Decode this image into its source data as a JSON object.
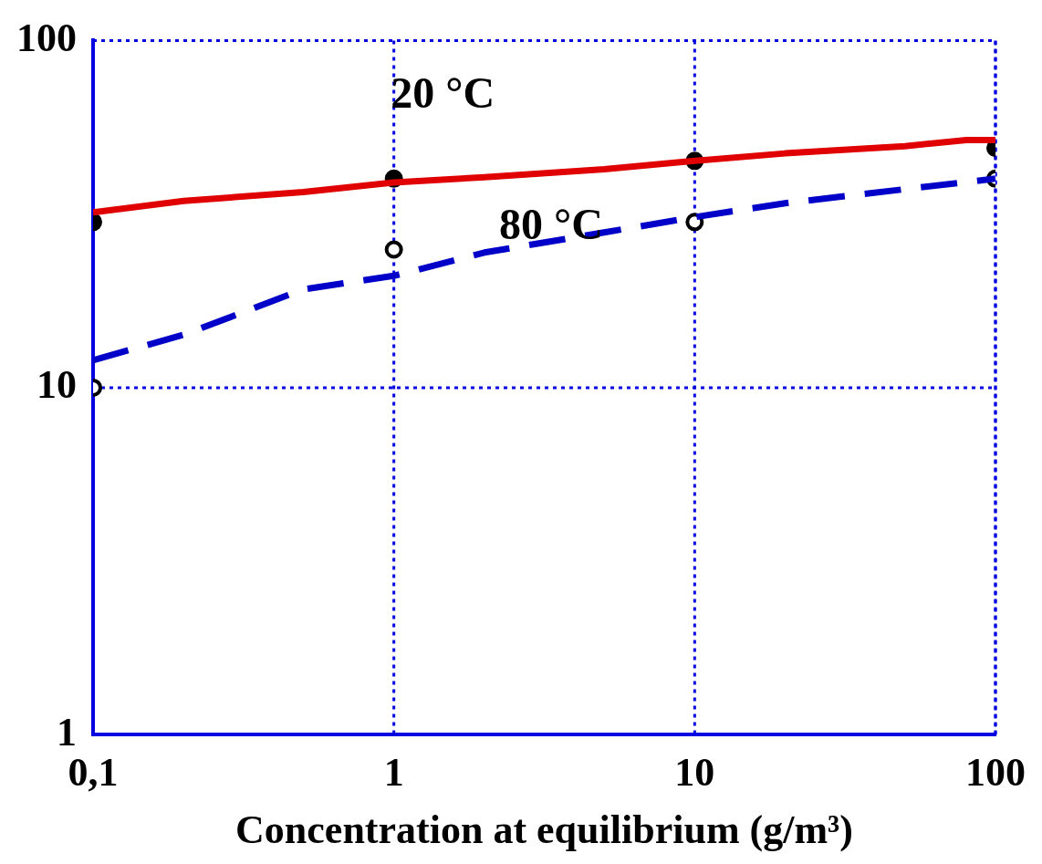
{
  "chart_data": {
    "type": "line",
    "xlabel": "Concentration at equilibrium (g/m³)",
    "log": "xy",
    "xlim": [
      0.1,
      100
    ],
    "ylim": [
      1,
      100
    ],
    "xticks": [
      {
        "value": 0.1,
        "label": "0,1"
      },
      1,
      10,
      100
    ],
    "yticks": [
      1,
      10,
      100
    ],
    "grid": true,
    "legend": false,
    "annotations": [
      "20 °C",
      "80 °C"
    ],
    "series": [
      {
        "color": "#e00000",
        "line_style": "solid",
        "marker": "none",
        "x": [
          0.1,
          0.2,
          0.5,
          1,
          2,
          5,
          10,
          20,
          50,
          80,
          100
        ],
        "values": [
          32,
          34.5,
          36.6,
          39,
          40.4,
          42.6,
          45,
          47.3,
          49.6,
          51.7,
          51.7
        ]
      },
      {
        "color": "#0000c8",
        "line_style": "dashed",
        "marker": "none",
        "x": [
          0.1,
          0.2,
          0.5,
          1,
          2,
          5,
          10,
          20,
          50,
          100
        ],
        "values": [
          12,
          14.2,
          19.2,
          21,
          24.5,
          28,
          31,
          34,
          37.3,
          40
        ]
      },
      {
        "type": "scatter",
        "color": "#000000",
        "marker": "circle",
        "x": [
          0.1,
          1,
          10,
          100
        ],
        "values": [
          30,
          40,
          45,
          49
        ]
      },
      {
        "type": "scatter",
        "color": "#ffffff",
        "marker": "circle",
        "x": [
          0.1,
          1,
          10,
          100
        ],
        "values": [
          10,
          25,
          30,
          40
        ]
      }
    ]
  }
}
